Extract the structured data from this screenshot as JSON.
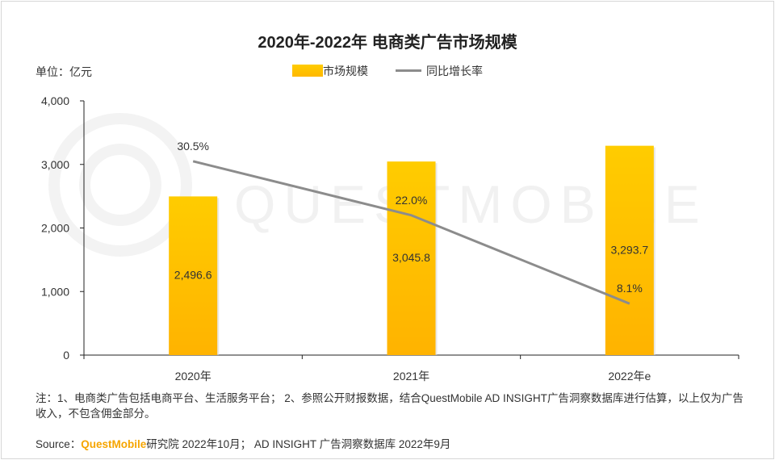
{
  "header": {
    "title": "2020年-2022年 电商类广告市场规模",
    "unit": "单位：亿元"
  },
  "legend": {
    "bar_label": "市场规模",
    "line_label": "同比增长率"
  },
  "watermark": {
    "text": "QUESTMOBILE"
  },
  "chart_data": {
    "type": "bar",
    "title": "2020年-2022年 电商类广告市场规模",
    "categories": [
      "2020年",
      "2021年",
      "2022年e"
    ],
    "series": [
      {
        "name": "市场规模",
        "type": "bar",
        "values": [
          2496.6,
          3045.8,
          3293.7
        ],
        "labels": [
          "2,496.6",
          "3,045.8",
          "3,293.7"
        ]
      },
      {
        "name": "同比增长率",
        "type": "line",
        "values": [
          30.5,
          22.0,
          8.1
        ],
        "labels": [
          "30.5%",
          "22.0%",
          "8.1%"
        ]
      }
    ],
    "ylim": [
      0,
      4000
    ],
    "yticks": [
      "0",
      "1,000",
      "2,000",
      "3,000",
      "4,000"
    ],
    "colors": {
      "bar_top": "#ffcc00",
      "bar_bottom": "#ffb300",
      "line": "#8c8c8c"
    },
    "grid": false,
    "legend_position": "top"
  },
  "footer": {
    "note": "注：1、电商类广告包括电商平台、生活服务平台；  2、参照公开财报数据，结合QuestMobile AD INSIGHT广告洞察数据库进行估算，以上仅为广告收入，不包含佣金部分。",
    "source_prefix": "Source：",
    "source_brand": "QuestMobile",
    "source_rest": "研究院 2022年10月；  AD INSIGHT 广告洞察数据库 2022年9月"
  }
}
